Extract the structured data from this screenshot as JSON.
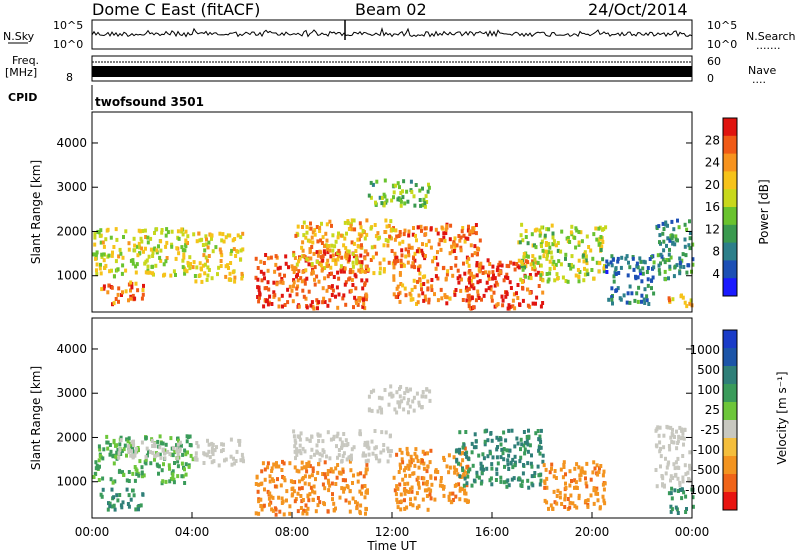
{
  "header": {
    "station": "Dome C East (fitACF)",
    "beam": "Beam 02",
    "date": "24/Oct/2014"
  },
  "top_panels": {
    "nsky_label": "N.Sky",
    "nsky_ticks": [
      "10^5",
      "10^0"
    ],
    "nsearch_label": "N.Search",
    "nsearch_dots": ".......",
    "freq_label_1": "Freq.",
    "freq_label_2": "[MHz]",
    "freq_tick": "8",
    "nave_ticks": [
      "60",
      "0"
    ],
    "nave_label": "Nave",
    "nave_dots": "....",
    "cpid_label": "CPID",
    "cpid_value": "twofsound 3501"
  },
  "colors": {
    "trace": "#000000",
    "power_scale": [
      "#1a1aff",
      "#1c4fb5",
      "#2c7f8a",
      "#3a9a4f",
      "#69c32e",
      "#c8d81c",
      "#f6c31a",
      "#f7931e",
      "#f05a16",
      "#e0140f"
    ],
    "velocity_scale": [
      "#1a3cc8",
      "#1c55a8",
      "#2f7f78",
      "#3a9b5a",
      "#6dc63a",
      "#c8c8c0",
      "#f4be3c",
      "#f39420",
      "#f06418",
      "#e81410"
    ]
  },
  "chart_data": [
    {
      "type": "heatmap",
      "title": "Power",
      "ylabel": "Slant Range [km]",
      "yticks": [
        "1000",
        "2000",
        "3000",
        "4000"
      ],
      "ylim": [
        180,
        4700
      ],
      "colorbar_label": "Power [dB]",
      "colorbar_ticks": [
        "4",
        "8",
        "12",
        "16",
        "20",
        "24",
        "28"
      ],
      "colorbar_range": [
        0,
        32
      ],
      "regions": [
        {
          "t": [
            0.0,
            4.0
          ],
          "range": [
            1000,
            2100
          ],
          "value": 18
        },
        {
          "t": [
            0.3,
            2.0
          ],
          "range": [
            400,
            900
          ],
          "value": 26
        },
        {
          "t": [
            4.0,
            6.0
          ],
          "range": [
            900,
            2000
          ],
          "value": 20
        },
        {
          "t": [
            6.5,
            11.0
          ],
          "range": [
            300,
            1600
          ],
          "value": 28
        },
        {
          "t": [
            8.0,
            12.0
          ],
          "range": [
            1100,
            2300
          ],
          "value": 22
        },
        {
          "t": [
            11.0,
            13.5
          ],
          "range": [
            2600,
            3200
          ],
          "value": 14
        },
        {
          "t": [
            12.0,
            15.5
          ],
          "range": [
            400,
            2200
          ],
          "value": 26
        },
        {
          "t": [
            15.0,
            18.0
          ],
          "range": [
            300,
            1400
          ],
          "value": 28
        },
        {
          "t": [
            17.0,
            20.5
          ],
          "range": [
            900,
            2200
          ],
          "value": 17
        },
        {
          "t": [
            20.5,
            22.5
          ],
          "range": [
            400,
            1500
          ],
          "value": 8
        },
        {
          "t": [
            22.5,
            24.0
          ],
          "range": [
            900,
            2300
          ],
          "value": 10
        },
        {
          "t": [
            23.0,
            24.0
          ],
          "range": [
            300,
            600
          ],
          "value": 22
        }
      ]
    },
    {
      "type": "heatmap",
      "title": "Velocity",
      "ylabel": "Slant Range [km]",
      "yticks": [
        "1000",
        "2000",
        "3000",
        "4000"
      ],
      "ylim": [
        180,
        4700
      ],
      "xlabel": "Time UT",
      "xticks": [
        "00:00",
        "04:00",
        "08:00",
        "12:00",
        "16:00",
        "20:00",
        "00:00"
      ],
      "xlim": [
        0,
        24
      ],
      "colorbar_label": "Velocity [m s⁻¹]",
      "colorbar_ticks": [
        "1000",
        "500",
        "100",
        "25",
        "-25",
        "-100",
        "-500",
        "-1000"
      ],
      "regions": [
        {
          "t": [
            0.0,
            4.0
          ],
          "range": [
            1000,
            2100
          ],
          "value": 60
        },
        {
          "t": [
            1.0,
            3.5
          ],
          "range": [
            1500,
            2000
          ],
          "value": 0
        },
        {
          "t": [
            0.3,
            2.0
          ],
          "range": [
            400,
            900
          ],
          "value": 200
        },
        {
          "t": [
            4.0,
            6.0
          ],
          "range": [
            1400,
            2000
          ],
          "value": 0
        },
        {
          "t": [
            6.5,
            11.0
          ],
          "range": [
            300,
            1500
          ],
          "value": -200
        },
        {
          "t": [
            8.0,
            12.0
          ],
          "range": [
            1500,
            2200
          ],
          "value": 0
        },
        {
          "t": [
            11.0,
            13.5
          ],
          "range": [
            2600,
            3200
          ],
          "value": 0
        },
        {
          "t": [
            12.0,
            15.0
          ],
          "range": [
            400,
            1800
          ],
          "value": -150
        },
        {
          "t": [
            14.5,
            18.0
          ],
          "range": [
            900,
            2200
          ],
          "value": 300
        },
        {
          "t": [
            18.0,
            20.5
          ],
          "range": [
            400,
            1500
          ],
          "value": -150
        },
        {
          "t": [
            22.5,
            24.0
          ],
          "range": [
            900,
            2300
          ],
          "value": 0
        },
        {
          "t": [
            23.0,
            24.0
          ],
          "range": [
            300,
            900
          ],
          "value": 200
        }
      ]
    }
  ]
}
